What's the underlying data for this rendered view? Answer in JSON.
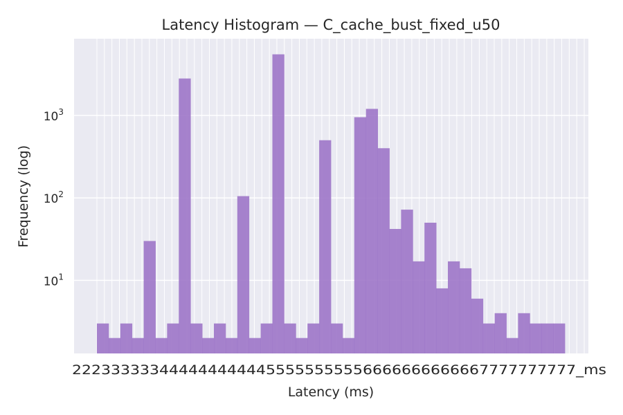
{
  "chart_data": {
    "type": "bar",
    "title": "Latency Histogram — C_cache_bust_fixed_u50",
    "xlabel": "Latency (ms)",
    "ylabel": "Frequency (log)",
    "y_scale": "log",
    "ylim": [
      1.3,
      8500
    ],
    "y_ticks": [
      {
        "value": 10,
        "base": "10",
        "exp": "1"
      },
      {
        "value": 100,
        "base": "10",
        "exp": "2"
      },
      {
        "value": 1000,
        "base": "10",
        "exp": "3"
      }
    ],
    "x_tick_label_text": "2223333334444444444455555555556666666666667777777777_ms",
    "values": [
      3,
      2,
      3,
      2,
      30,
      2,
      3,
      2800,
      3,
      2,
      3,
      2,
      105,
      2,
      3,
      5500,
      3,
      2,
      3,
      500,
      3,
      2,
      950,
      1200,
      400,
      42,
      72,
      17,
      50,
      8,
      17,
      14,
      6,
      3,
      4,
      2,
      4,
      3,
      3,
      3
    ],
    "grid": true,
    "colors": {
      "bar": "#9b72c6",
      "background": "#eaeaf2",
      "grid": "#ffffff"
    }
  }
}
